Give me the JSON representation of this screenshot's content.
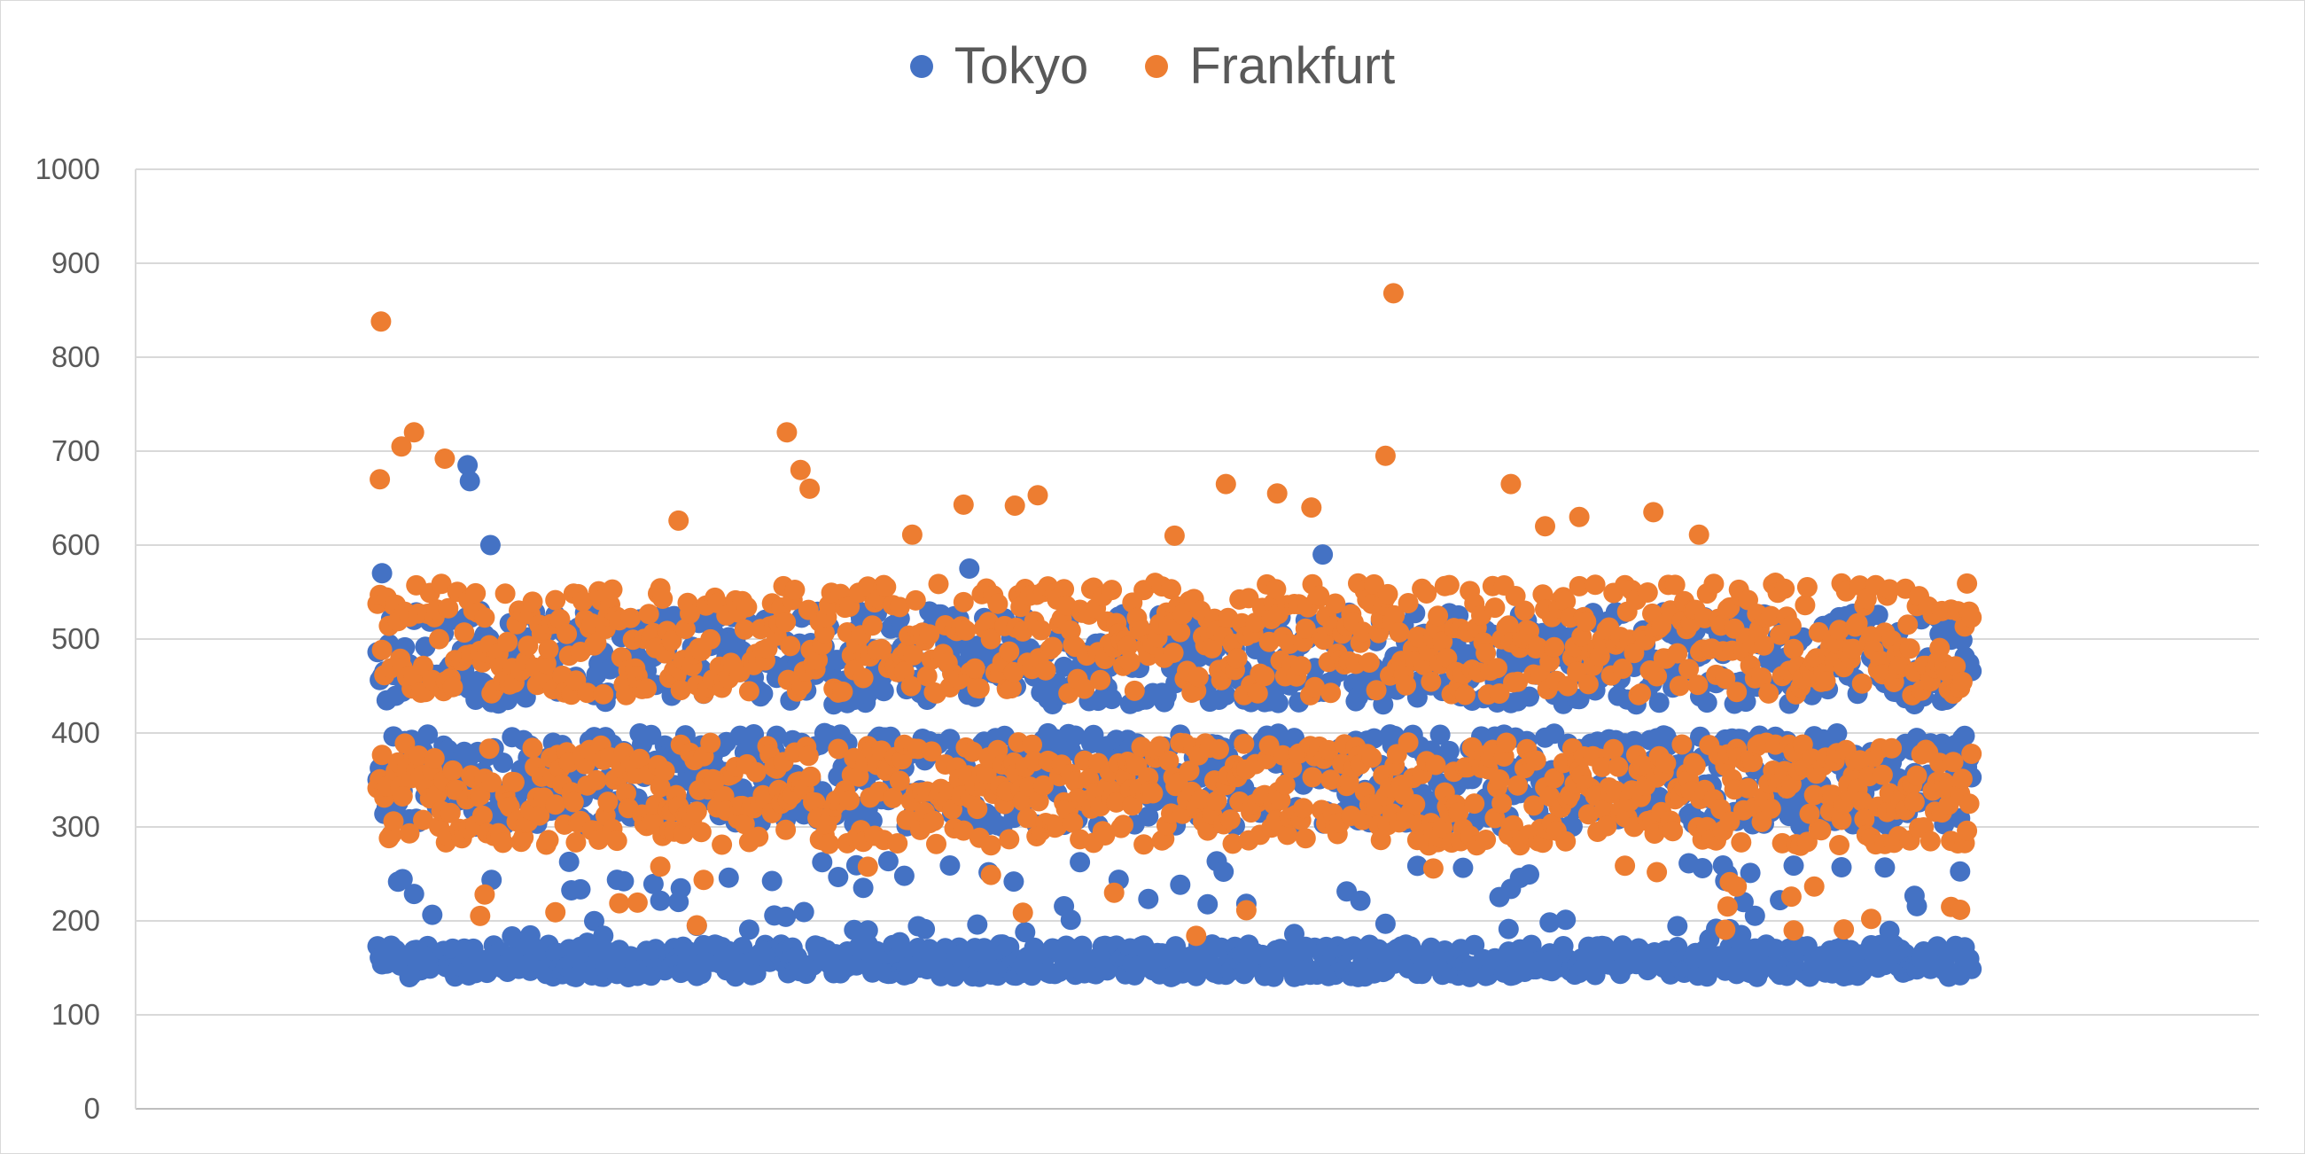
{
  "chart_data": {
    "type": "scatter",
    "title": "",
    "xlabel": "",
    "ylabel": "",
    "ylim": [
      0,
      1000
    ],
    "yticks": [
      "0",
      "100",
      "200",
      "300",
      "400",
      "500",
      "600",
      "700",
      "800",
      "900",
      "1000"
    ],
    "x_range": [
      1,
      1400
    ],
    "legend_position": "top-center",
    "grid": true,
    "series": [
      {
        "name": "Tokyo",
        "color": "#4472C4",
        "bands": [
          [
            140,
            175
          ],
          [
            300,
            400
          ],
          [
            430,
            530
          ]
        ],
        "outliers": [
          [
            5,
            570
          ],
          [
            80,
            685
          ],
          [
            82,
            668
          ],
          [
            520,
            575
          ],
          [
            830,
            590
          ],
          [
            1200,
            540
          ],
          [
            100,
            600
          ]
        ]
      },
      {
        "name": "Frankfurt",
        "color": "#ED7D31",
        "bands": [
          [
            280,
            390
          ],
          [
            440,
            560
          ]
        ],
        "outliers": [
          [
            4,
            838
          ],
          [
            3,
            670
          ],
          [
            22,
            705
          ],
          [
            33,
            720
          ],
          [
            60,
            692
          ],
          [
            360,
            720
          ],
          [
            372,
            680
          ],
          [
            380,
            660
          ],
          [
            515,
            643
          ],
          [
            580,
            653
          ],
          [
            745,
            665
          ],
          [
            885,
            695
          ],
          [
            892,
            868
          ],
          [
            1025,
            620
          ],
          [
            1055,
            630
          ],
          [
            1120,
            635
          ],
          [
            1160,
            611
          ],
          [
            560,
            642
          ],
          [
            470,
            611
          ],
          [
            265,
            626
          ],
          [
            700,
            610
          ],
          [
            790,
            655
          ],
          [
            820,
            640
          ],
          [
            995,
            665
          ]
        ]
      }
    ]
  }
}
